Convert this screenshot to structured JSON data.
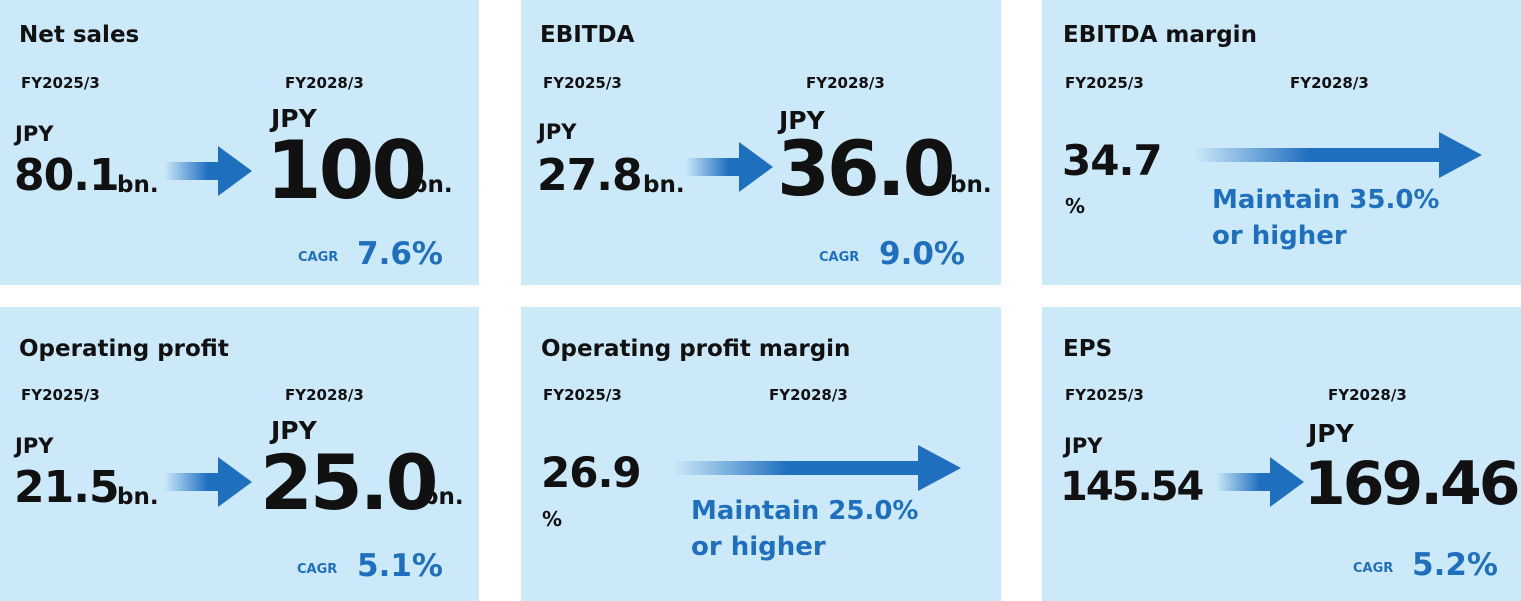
{
  "colors": {
    "card_bg": "#cce9f9",
    "accent": "#1f6fbf",
    "text": "#111111"
  },
  "cards": {
    "net_sales": {
      "title": "Net sales",
      "label_from": "FY2025/3",
      "label_to": "FY2028/3",
      "currency": "JPY",
      "from_value": "80.1",
      "to_value": "100",
      "unit": "bn.",
      "cagr_label": "CAGR",
      "cagr_value": "7.6%",
      "icon": "right-arrow-icon"
    },
    "ebitda": {
      "title": "EBITDA",
      "label_from": "FY2025/3",
      "label_to": "FY2028/3",
      "currency": "JPY",
      "from_value": "27.8",
      "to_value": "36.0",
      "unit": "bn.",
      "cagr_label": "CAGR",
      "cagr_value": "9.0%",
      "icon": "right-arrow-icon"
    },
    "ebitda_margin": {
      "title": "EBITDA margin",
      "label_from": "FY2025/3",
      "label_to": "FY2028/3",
      "from_value": "34.7",
      "from_unit": "%",
      "target_line1": "Maintain 35.0%",
      "target_line2": "or higher",
      "icon": "long-gradient-arrow-icon"
    },
    "operating_profit": {
      "title": "Operating profit",
      "label_from": "FY2025/3",
      "label_to": "FY2028/3",
      "currency": "JPY",
      "from_value": "21.5",
      "to_value": "25.0",
      "unit": "bn.",
      "cagr_label": "CAGR",
      "cagr_value": "5.1%",
      "icon": "right-arrow-icon"
    },
    "operating_profit_margin": {
      "title": "Operating profit margin",
      "label_from": "FY2025/3",
      "label_to": "FY2028/3",
      "from_value": "26.9",
      "from_unit": "%",
      "target_line1": "Maintain 25.0%",
      "target_line2": "or higher",
      "icon": "long-gradient-arrow-icon"
    },
    "eps": {
      "title": "EPS",
      "label_from": "FY2025/3",
      "label_to": "FY2028/3",
      "currency": "JPY",
      "from_value": "145.54",
      "to_value": "169.46",
      "cagr_label": "CAGR",
      "cagr_value": "5.2%",
      "icon": "right-arrow-icon"
    }
  }
}
